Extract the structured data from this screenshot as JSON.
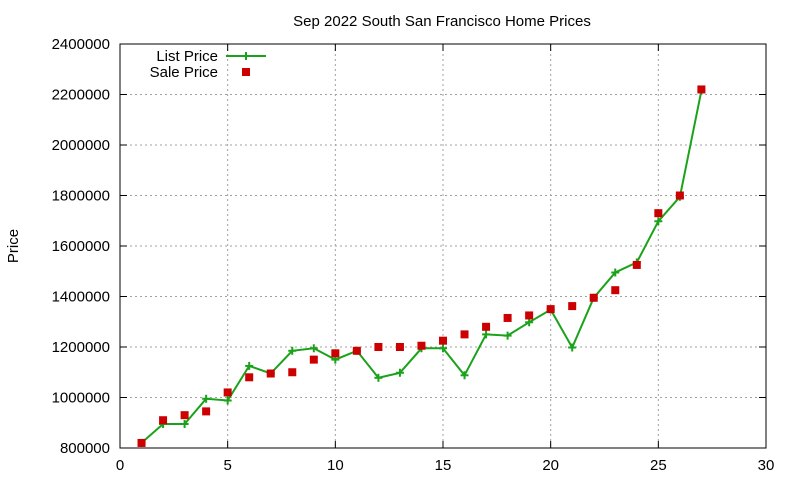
{
  "chart_data": {
    "type": "line",
    "title": "Sep 2022 South San Francisco Home Prices",
    "xlabel": "",
    "ylabel": "Price",
    "xlim": [
      0,
      30
    ],
    "ylim": [
      800000,
      2400000
    ],
    "x_ticks": [
      0,
      5,
      10,
      15,
      20,
      25,
      30
    ],
    "y_ticks": [
      800000,
      1000000,
      1200000,
      1400000,
      1600000,
      1800000,
      2000000,
      2200000,
      2400000
    ],
    "grid": true,
    "legend_position": "top-left",
    "series": [
      {
        "name": "List Price",
        "style": "line",
        "marker": "plus",
        "color": "#1aa31a",
        "x": [
          1,
          2,
          3,
          4,
          5,
          6,
          7,
          8,
          9,
          10,
          11,
          12,
          13,
          14,
          15,
          16,
          17,
          18,
          19,
          20,
          21,
          22,
          23,
          24,
          25,
          26,
          27
        ],
        "values": [
          820000,
          895000,
          895000,
          995000,
          988000,
          1125000,
          1095000,
          1185000,
          1195000,
          1150000,
          1185000,
          1078000,
          1098000,
          1195000,
          1195000,
          1088000,
          1250000,
          1245000,
          1298000,
          1348000,
          1198000,
          1395000,
          1495000,
          1535000,
          1698000,
          1795000,
          2215000
        ]
      },
      {
        "name": "Sale Price",
        "style": "points",
        "marker": "square",
        "color": "#cc0000",
        "x": [
          1,
          2,
          3,
          4,
          5,
          6,
          7,
          8,
          9,
          10,
          11,
          12,
          13,
          14,
          15,
          16,
          17,
          18,
          19,
          20,
          21,
          22,
          23,
          24,
          25,
          26,
          27
        ],
        "values": [
          820000,
          910000,
          930000,
          945000,
          1020000,
          1080000,
          1095000,
          1100000,
          1150000,
          1175000,
          1185000,
          1200000,
          1200000,
          1205000,
          1225000,
          1250000,
          1280000,
          1315000,
          1325000,
          1350000,
          1362000,
          1395000,
          1425000,
          1525000,
          1730000,
          1800000,
          2220000
        ]
      }
    ]
  }
}
